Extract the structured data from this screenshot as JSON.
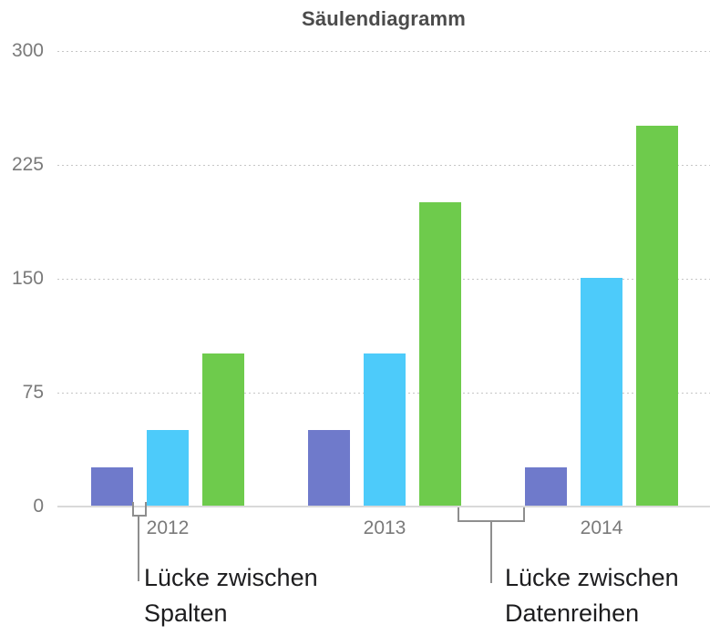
{
  "chart_data": {
    "type": "bar",
    "title": "Säulendiagramm",
    "categories": [
      "2012",
      "2013",
      "2014"
    ],
    "series": [
      {
        "name": "purple",
        "color": "#6f7acb",
        "values": [
          25,
          50,
          25
        ]
      },
      {
        "name": "cyan",
        "color": "#4dcbfa",
        "values": [
          50,
          100,
          150
        ]
      },
      {
        "name": "green",
        "color": "#6ecb4c",
        "values": [
          100,
          200,
          250
        ]
      }
    ],
    "y_ticks": [
      300,
      225,
      150,
      75,
      0
    ],
    "ylim": [
      0,
      300
    ],
    "xlabel": "",
    "ylabel": "",
    "grid": "horizontal-dotted",
    "legend_position": "none"
  },
  "annotations": {
    "column_gap": {
      "line1": "Lücke zwischen",
      "line2": "Spalten"
    },
    "series_gap": {
      "line1": "Lücke zwischen",
      "line2": "Datenreihen"
    }
  },
  "colors": {
    "axis_line": "#d9d9d9",
    "gridline": "#c6c6c6",
    "tick_label": "#7a7a7a",
    "title": "#4b4b4b",
    "bracket": "#8e8e8e",
    "annotation_text": "#1d1d1f"
  }
}
